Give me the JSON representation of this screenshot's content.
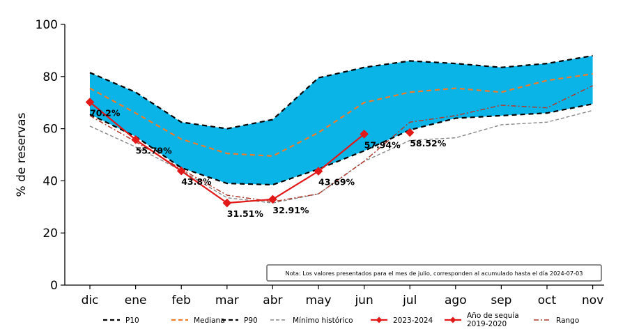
{
  "chart_data": {
    "type": "line",
    "ylabel": "% de reservas",
    "xlabel": "",
    "ylim": [
      0,
      100
    ],
    "yticks": [
      0,
      20,
      40,
      60,
      80,
      100
    ],
    "categories": [
      "dic",
      "ene",
      "feb",
      "mar",
      "abr",
      "may",
      "jun",
      "jul",
      "ago",
      "sep",
      "oct",
      "nov"
    ],
    "band": {
      "lower": "P10",
      "upper": "P90",
      "color": "#0ab4e6"
    },
    "series": [
      {
        "name": "P10",
        "color": "#000000",
        "style": "dashed",
        "values": [
          65.5,
          57.0,
          45.0,
          39.0,
          38.5,
          44.5,
          51.5,
          59.5,
          64.0,
          65.0,
          66.0,
          69.5
        ]
      },
      {
        "name": "Mediana",
        "color": "#f07b28",
        "style": "dashed",
        "values": [
          75.5,
          66.0,
          56.0,
          50.5,
          49.5,
          58.5,
          70.0,
          74.0,
          75.5,
          74.0,
          78.5,
          81.0
        ]
      },
      {
        "name": "P90",
        "color": "#000000",
        "style": "dashed",
        "values": [
          81.5,
          74.0,
          62.5,
          60.0,
          63.5,
          79.5,
          83.5,
          86.0,
          85.0,
          83.5,
          85.0,
          88.0
        ]
      },
      {
        "name": "Mínimo histórico",
        "color": "#888888",
        "style": "dashed-thin",
        "values": [
          61.0,
          53.0,
          44.0,
          33.5,
          31.5,
          35.0,
          47.5,
          55.5,
          56.5,
          61.5,
          62.5,
          67.0
        ]
      },
      {
        "name": "2023-2024",
        "color": "#e11919",
        "style": "solid-marker",
        "values": [
          70.2,
          55.79,
          43.8,
          31.51,
          32.91,
          43.69,
          57.94,
          null,
          null,
          null,
          null,
          null
        ]
      },
      {
        "name": "Año de sequía 2019-2020",
        "color": "#e11919",
        "style": "marker-only",
        "values": [
          70.2,
          55.79,
          43.8,
          31.51,
          32.91,
          43.69,
          57.94,
          58.52,
          null,
          null,
          null,
          null
        ]
      },
      {
        "name": "Rango",
        "color": "#b03a2e",
        "style": "dashdot",
        "values": [
          65.0,
          55.0,
          44.5,
          34.5,
          32.0,
          35.0,
          47.5,
          62.5,
          65.0,
          69.0,
          68.0,
          76.5
        ]
      }
    ],
    "data_labels": [
      {
        "category": "dic",
        "value": 70.2,
        "text": "70.2%"
      },
      {
        "category": "ene",
        "value": 55.79,
        "text": "55.79%"
      },
      {
        "category": "feb",
        "value": 43.8,
        "text": "43.8%"
      },
      {
        "category": "mar",
        "value": 31.51,
        "text": "31.51%"
      },
      {
        "category": "abr",
        "value": 32.91,
        "text": "32.91%"
      },
      {
        "category": "may",
        "value": 43.69,
        "text": "43.69%"
      },
      {
        "category": "jun",
        "value": 57.94,
        "text": "57.94%"
      },
      {
        "category": "jul",
        "value": 58.52,
        "text": "58.52%"
      }
    ],
    "legend": {
      "placement": "bottom",
      "entries": [
        {
          "label": "P10",
          "color": "#000000",
          "style": "dashed"
        },
        {
          "label": "Mediana",
          "color": "#f07b28",
          "style": "dashed"
        },
        {
          "label": "P90",
          "color": "#000000",
          "style": "dashed"
        },
        {
          "label": "Mínimo histórico",
          "color": "#888888",
          "style": "dashed-thin"
        },
        {
          "label": "2023-2024",
          "color": "#e11919",
          "style": "solid-marker"
        },
        {
          "label": "Año de sequía",
          "label2": "2019-2020",
          "color": "#e11919",
          "style": "solid-marker"
        },
        {
          "label": "Rango",
          "color": "#b03a2e",
          "style": "dashdot"
        }
      ]
    },
    "note": "Nota: Los valores presentados para el mes de julio, corresponden al acumulado hasta el día 2024-07-03",
    "grid": false
  }
}
